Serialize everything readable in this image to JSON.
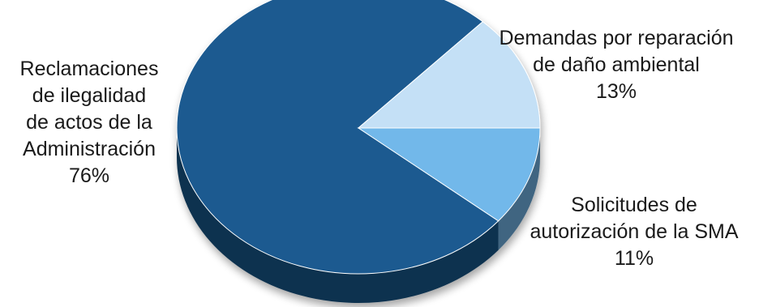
{
  "chart_data": {
    "type": "pie",
    "style": "3d",
    "slices": [
      {
        "label_lines": [
          "Reclamaciones",
          "de  ilegalidad",
          "de actos de la",
          "Administración"
        ],
        "percent_text": "76%",
        "value": 76,
        "color": "#1a5a90"
      },
      {
        "label_lines": [
          "Demandas por reparación",
          "de daño ambiental"
        ],
        "percent_text": "13%",
        "value": 13,
        "color": "#c4e0f6"
      },
      {
        "label_lines": [
          "Solicitudes de",
          "autorización de la SMA"
        ],
        "percent_text": "11%",
        "value": 11,
        "color": "#72b8ea"
      }
    ],
    "legend": "none"
  }
}
